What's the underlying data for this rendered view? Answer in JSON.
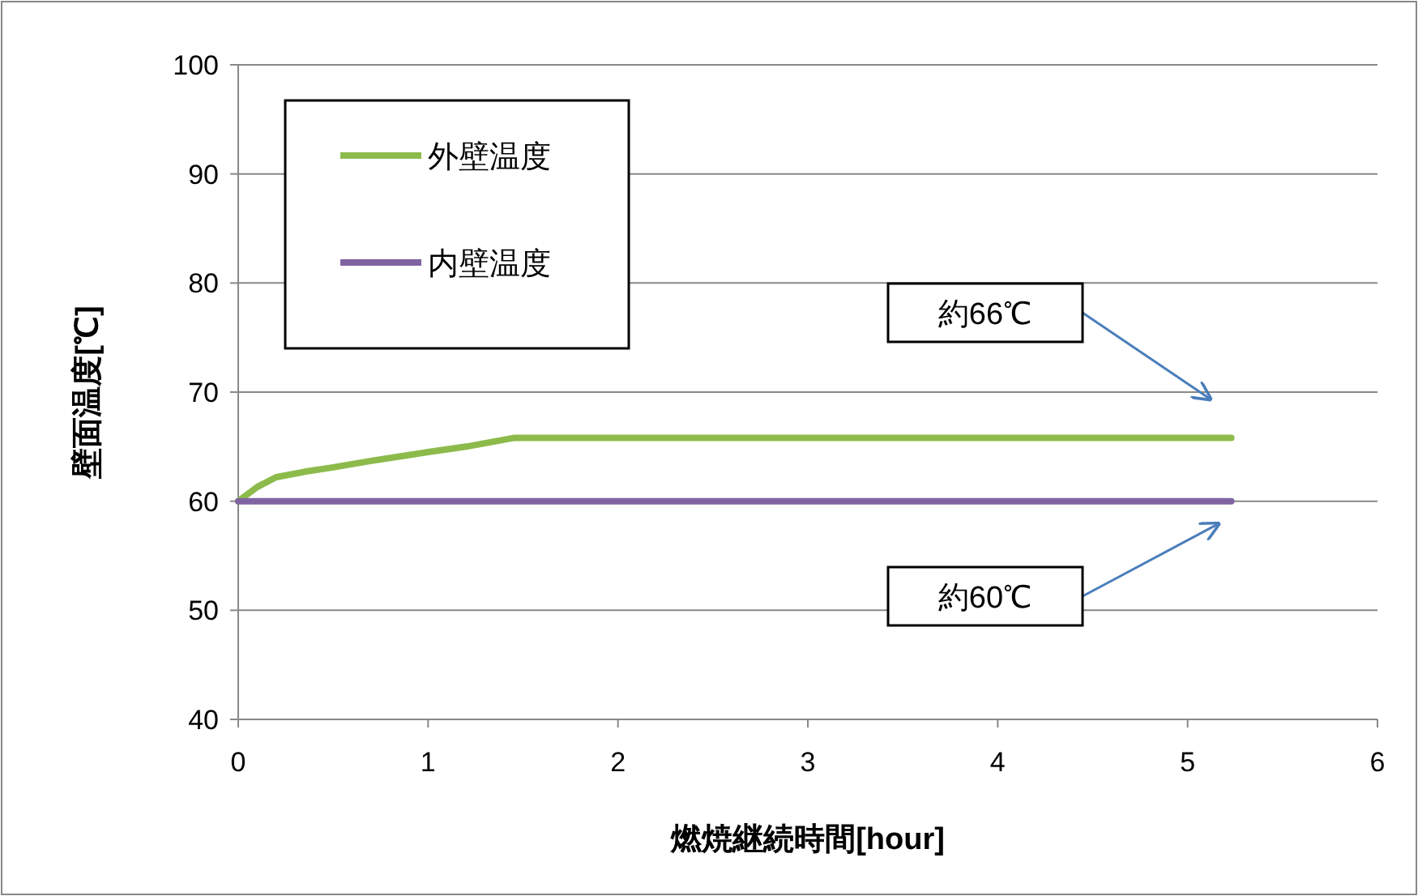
{
  "chart_data": {
    "type": "line",
    "xlabel": "燃焼継続時間[hour]",
    "ylabel": "壁面温度[℃]",
    "xlim": [
      0,
      6
    ],
    "xticks": [
      0,
      1,
      2,
      3,
      4,
      5,
      6
    ],
    "ylim": [
      40,
      100
    ],
    "yticks": [
      40,
      50,
      60,
      70,
      80,
      90,
      100
    ],
    "grid": "y",
    "legend": "top left",
    "marker": "none",
    "line_style": "solid",
    "series": [
      {
        "name": "外壁温度",
        "color": "#8cbb4b",
        "x": [
          0,
          0.1,
          0.2,
          0.35,
          0.5,
          0.7,
          1.0,
          1.2,
          1.45,
          2,
          3,
          4,
          5.23
        ],
        "values": [
          60,
          61.3,
          62.2,
          62.7,
          63.1,
          63.7,
          64.5,
          65.0,
          65.8,
          65.8,
          65.8,
          65.8,
          65.8
        ]
      },
      {
        "name": "内壁温度",
        "color": "#8064a2",
        "x": [
          0,
          5.23
        ],
        "values": [
          60,
          60
        ]
      }
    ],
    "annotations": [
      "約66℃",
      "約60℃"
    ]
  }
}
